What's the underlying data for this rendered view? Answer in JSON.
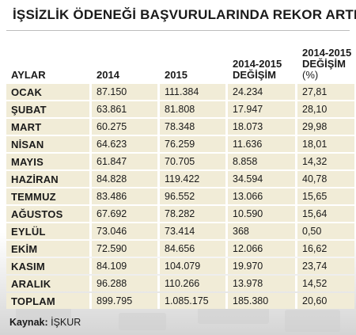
{
  "title": "İŞSİZLİK ÖDENEĞİ BAŞVURULARINDA REKOR ARTIŞ",
  "colors": {
    "accent": "#d8232a",
    "row_bg": "#f1ecd7"
  },
  "columns": {
    "month": "AYLAR",
    "y2014": "2014",
    "y2015": "2015",
    "diff_line1": "2014-2015",
    "diff_line2": "DEĞİŞİM",
    "pct_line1": "2014-2015",
    "pct_line2": "DEĞİŞİM",
    "pct_unit": "(%)"
  },
  "rows": [
    [
      "OCAK",
      "87.150",
      "111.384",
      "24.234",
      "27,81"
    ],
    [
      "ŞUBAT",
      "63.861",
      "81.808",
      "17.947",
      "28,10"
    ],
    [
      "MART",
      "60.275",
      "78.348",
      "18.073",
      "29,98"
    ],
    [
      "NİSAN",
      "64.623",
      "76.259",
      "11.636",
      "18,01"
    ],
    [
      "MAYIS",
      "61.847",
      "70.705",
      "8.858",
      "14,32"
    ],
    [
      "HAZİRAN",
      "84.828",
      "119.422",
      "34.594",
      "40,78"
    ],
    [
      "TEMMUZ",
      "83.486",
      "96.552",
      "13.066",
      "15,65"
    ],
    [
      "AĞUSTOS",
      "67.692",
      "78.282",
      "10.590",
      "15,64"
    ],
    [
      "EYLÜL",
      "73.046",
      "73.414",
      "368",
      "0,50"
    ],
    [
      "EKİM",
      "72.590",
      "84.656",
      "12.066",
      "16,62"
    ],
    [
      "KASIM",
      "84.109",
      "104.079",
      "19.970",
      "23,74"
    ],
    [
      "ARALIK",
      "96.288",
      "110.266",
      "13.978",
      "14,52"
    ],
    [
      "TOPLAM",
      "899.795",
      "1.085.175",
      "185.380",
      "20,60"
    ]
  ],
  "source": {
    "label": "Kaynak:",
    "value": "İŞKUR"
  }
}
